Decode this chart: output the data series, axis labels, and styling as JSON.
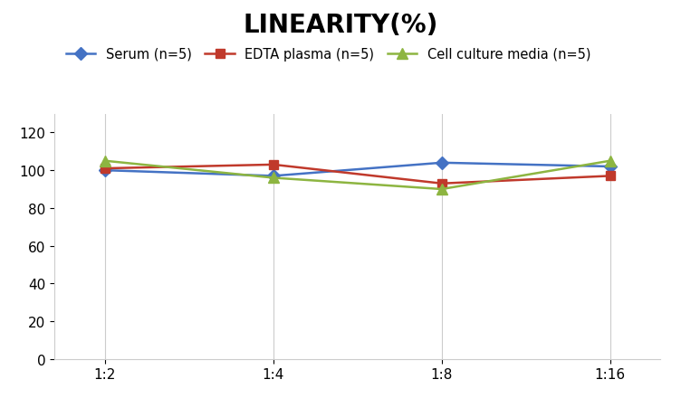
{
  "title": "LINEARITY(%)",
  "x_labels": [
    "1:2",
    "1:4",
    "1:8",
    "1:16"
  ],
  "series": [
    {
      "name": "Serum (n=5)",
      "values": [
        100,
        97,
        104,
        102
      ],
      "color": "#4472C4",
      "marker": "D",
      "marker_size": 7
    },
    {
      "name": "EDTA plasma (n=5)",
      "values": [
        101,
        103,
        93,
        97
      ],
      "color": "#C0392B",
      "marker": "s",
      "marker_size": 7
    },
    {
      "name": "Cell culture media (n=5)",
      "values": [
        105,
        96,
        90,
        105
      ],
      "color": "#8DB541",
      "marker": "^",
      "marker_size": 9
    }
  ],
  "ylim": [
    0,
    130
  ],
  "yticks": [
    0,
    20,
    40,
    60,
    80,
    100,
    120
  ],
  "background_color": "#FFFFFF",
  "grid_color": "#CCCCCC",
  "title_fontsize": 20,
  "legend_fontsize": 10.5,
  "tick_fontsize": 11
}
